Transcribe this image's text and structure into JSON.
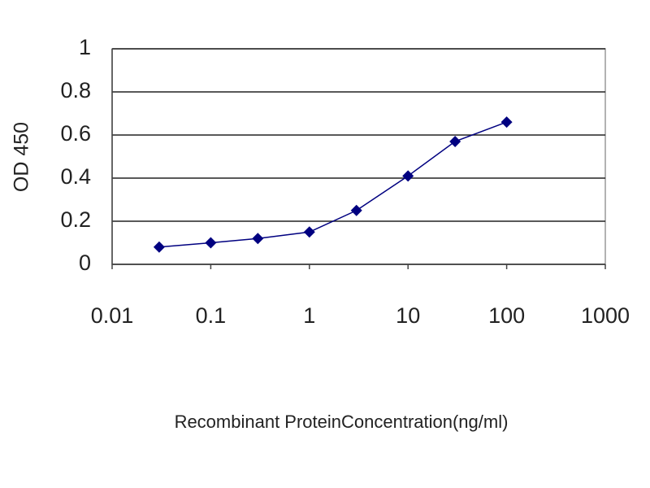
{
  "chart_data": {
    "type": "line",
    "x_label": "Recombinant ProteinConcentration(ng/ml)",
    "y_label": "OD 450",
    "x": [
      0.03,
      0.1,
      0.3,
      1,
      3,
      10,
      30,
      100
    ],
    "values": [
      0.08,
      0.1,
      0.12,
      0.15,
      0.25,
      0.41,
      0.57,
      0.66
    ],
    "color": "#000080",
    "x_log": true,
    "xlim": [
      0.01,
      1000
    ],
    "xticks": [
      0.01,
      0.1,
      1,
      10,
      100,
      1000
    ],
    "ylim": [
      0,
      1
    ],
    "yticks": [
      0,
      0.2,
      0.4,
      0.6,
      0.8,
      1
    ],
    "grid": true
  }
}
